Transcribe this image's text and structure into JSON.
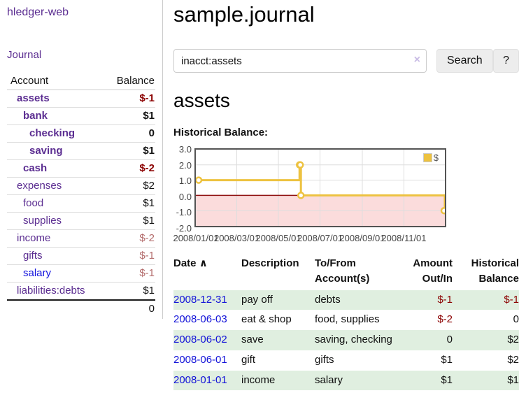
{
  "app": {
    "brand": "hledger-web",
    "nav_journal": "Journal"
  },
  "sidebar": {
    "headers": {
      "account": "Account",
      "balance": "Balance"
    },
    "accounts": [
      {
        "name": "assets",
        "balance": "$-1",
        "depth": 1,
        "bold": true,
        "neg": "strong"
      },
      {
        "name": "bank",
        "balance": "$1",
        "depth": 2,
        "bold": true,
        "neg": "none"
      },
      {
        "name": "checking",
        "balance": "0",
        "depth": 3,
        "bold": true,
        "neg": "none"
      },
      {
        "name": "saving",
        "balance": "$1",
        "depth": 3,
        "bold": true,
        "neg": "none"
      },
      {
        "name": "cash",
        "balance": "$-2",
        "depth": 2,
        "bold": true,
        "neg": "strong"
      },
      {
        "name": "expenses",
        "balance": "$2",
        "depth": 1,
        "bold": false,
        "neg": "none"
      },
      {
        "name": "food",
        "balance": "$1",
        "depth": 2,
        "bold": false,
        "neg": "none"
      },
      {
        "name": "supplies",
        "balance": "$1",
        "depth": 2,
        "bold": false,
        "neg": "none"
      },
      {
        "name": "income",
        "balance": "$-2",
        "depth": 1,
        "bold": false,
        "neg": "soft"
      },
      {
        "name": "gifts",
        "balance": "$-1",
        "depth": 2,
        "bold": false,
        "neg": "soft"
      },
      {
        "name": "salary",
        "balance": "$-1",
        "depth": 2,
        "bold": false,
        "neg": "soft",
        "link_color": "blue"
      },
      {
        "name": "liabilities:debts",
        "balance": "$1",
        "depth": 1,
        "bold": false,
        "neg": "none"
      }
    ],
    "total": "0"
  },
  "main": {
    "title": "sample.journal",
    "search": {
      "value": "inacct:assets",
      "clear_icon": "×",
      "button": "Search",
      "help_button": "?"
    },
    "account_heading": "assets",
    "chart_label": "Historical Balance:"
  },
  "register": {
    "headers": {
      "date": "Date",
      "sort_indicator": "∧",
      "description": "Description",
      "accounts": "To/From Account(s)",
      "amount": "Amount Out/In",
      "balance": "Historical Balance"
    },
    "rows": [
      {
        "date": "2008-12-31",
        "description": "pay off",
        "accounts": "debts",
        "amount": "$-1",
        "amount_neg": true,
        "balance": "$-1",
        "balance_neg": true,
        "shaded": true
      },
      {
        "date": "2008-06-03",
        "description": "eat & shop",
        "accounts": "food, supplies",
        "amount": "$-2",
        "amount_neg": true,
        "balance": "0",
        "balance_neg": false,
        "shaded": false
      },
      {
        "date": "2008-06-02",
        "description": "save",
        "accounts": "saving, checking",
        "amount": "0",
        "amount_neg": false,
        "balance": "$2",
        "balance_neg": false,
        "shaded": true
      },
      {
        "date": "2008-06-01",
        "description": "gift",
        "accounts": "gifts",
        "amount": "$1",
        "amount_neg": false,
        "balance": "$2",
        "balance_neg": false,
        "shaded": false
      },
      {
        "date": "2008-01-01",
        "description": "income",
        "accounts": "salary",
        "amount": "$1",
        "amount_neg": false,
        "balance": "$1",
        "balance_neg": false,
        "shaded": true
      }
    ]
  },
  "chart_data": {
    "type": "line",
    "title": "Historical Balance:",
    "steps": true,
    "x_range": [
      "2008-01-01",
      "2008-12-31"
    ],
    "series": [
      {
        "name": "$",
        "color": "#EDC240",
        "points": [
          [
            "2008-01-01",
            1
          ],
          [
            "2008-06-01",
            2
          ],
          [
            "2008-06-02",
            2
          ],
          [
            "2008-06-03",
            0
          ],
          [
            "2008-12-31",
            -1
          ]
        ]
      }
    ],
    "x_ticks": [
      {
        "date": "2008-01-01",
        "label": "2008/01/01"
      },
      {
        "date": "2008-03-01",
        "label": "2008/03/01"
      },
      {
        "date": "2008-05-01",
        "label": "2008/05/01"
      },
      {
        "date": "2008-07-01",
        "label": "2008/07/01"
      },
      {
        "date": "2008-09-01",
        "label": "2008/09/01"
      },
      {
        "date": "2008-11-01",
        "label": "2008/11/01"
      }
    ],
    "y_ticks": [
      "3.0",
      "2.0",
      "1.0",
      "0.0",
      "-1.0",
      "-2.0"
    ],
    "ylim": [
      -2,
      3
    ],
    "grid": true,
    "legend": {
      "label": "$",
      "position": "top-right"
    },
    "negative_region_color": "#fbdcdc",
    "zero_line_color": "#8f1111",
    "grid_color": "#dedede"
  }
}
